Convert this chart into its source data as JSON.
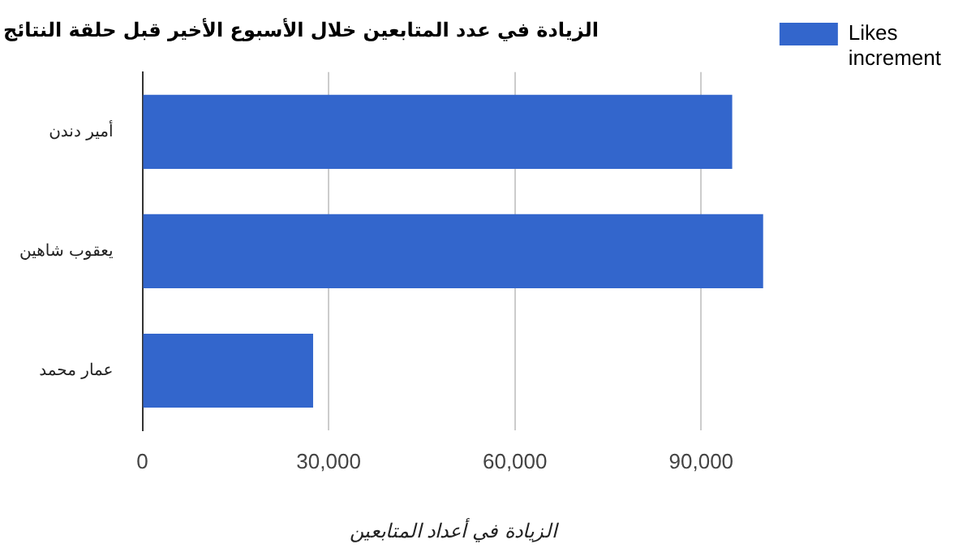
{
  "chart_data": {
    "type": "bar",
    "orientation": "horizontal",
    "title": "الزيادة في عدد المتابعين خلال الأسبوع الأخير قبل حلقة النتائج",
    "xlabel": "الزيادة في أعداد المتابعين",
    "categories": [
      "أمير دندن",
      "يعقوب شاهين",
      "عمار محمد"
    ],
    "series": [
      {
        "name": "Likes increment",
        "color": "#3366cc",
        "values": [
          95000,
          100000,
          27500
        ]
      }
    ],
    "xlim": [
      0,
      100000
    ],
    "xticks": [
      {
        "value": 0,
        "label": "0"
      },
      {
        "value": 30000,
        "label": "30,000"
      },
      {
        "value": 60000,
        "label": "60,000"
      },
      {
        "value": 90000,
        "label": "90,000"
      }
    ],
    "grid": true,
    "legend": "right"
  }
}
